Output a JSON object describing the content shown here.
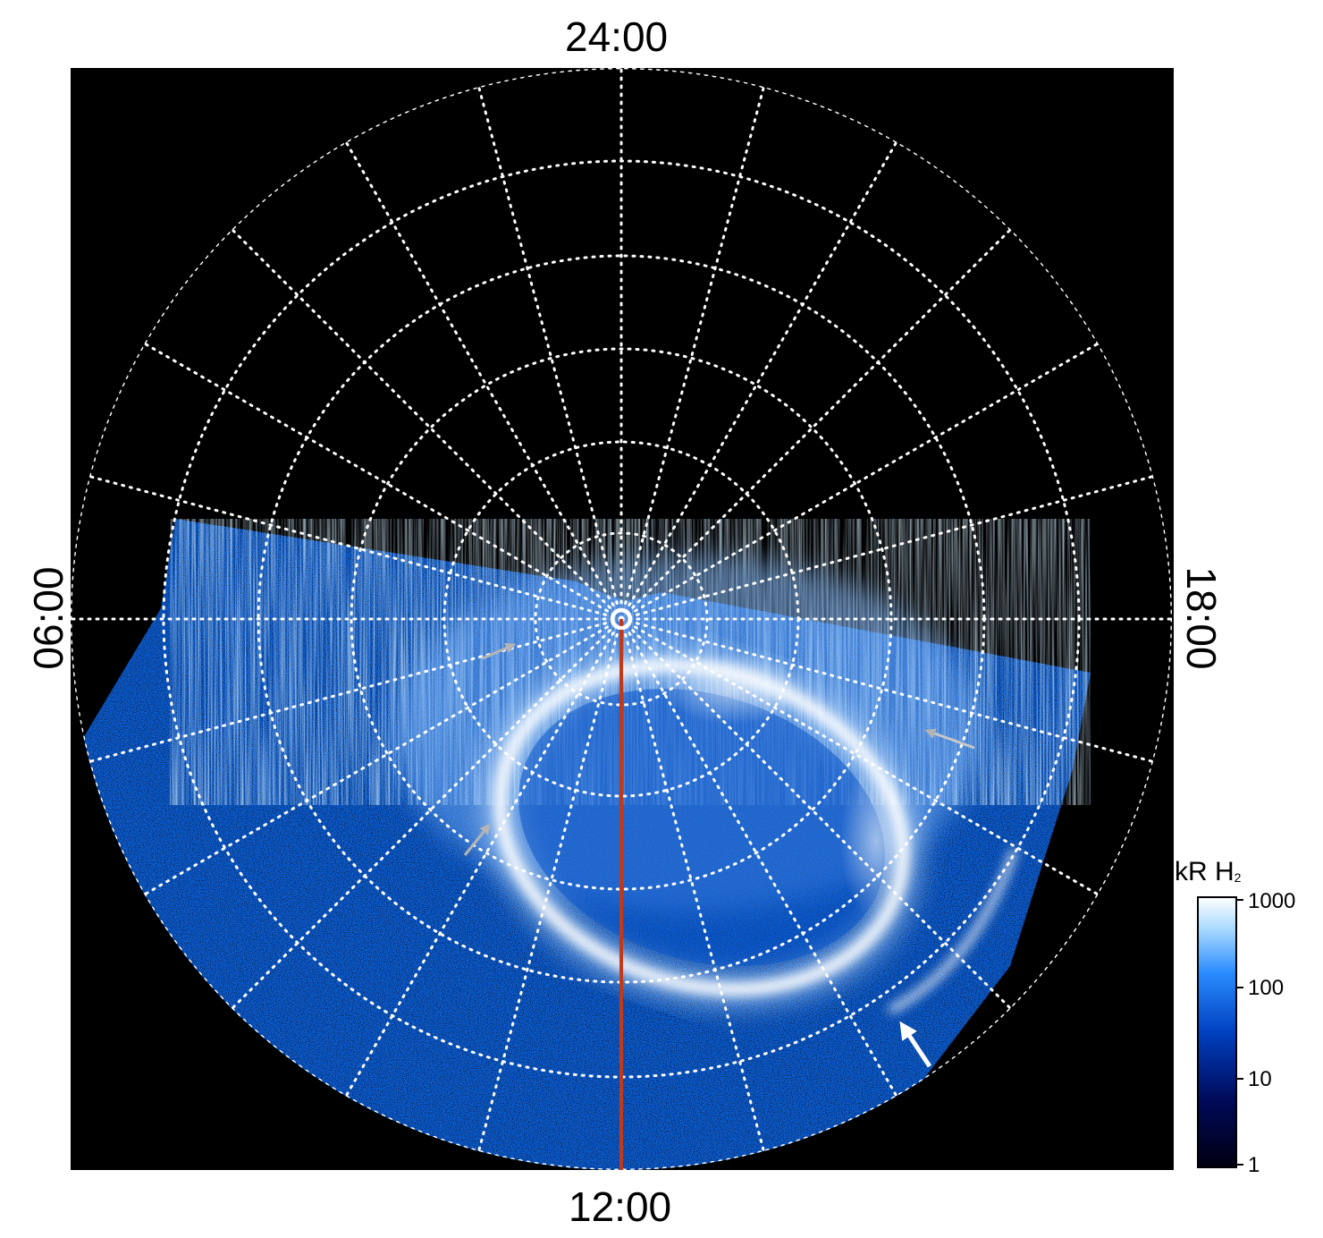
{
  "time_labels": {
    "top": "24:00",
    "bottom": "12:00",
    "left": "06:00",
    "right": "18:00"
  },
  "colorbar": {
    "title_main": "kR H",
    "title_sub": "2",
    "ticks": [
      "1000",
      "100",
      "10",
      "1"
    ],
    "scale": "log",
    "range": [
      1,
      1000
    ],
    "colors": [
      "#000010",
      "#000a5a",
      "#0040c0",
      "#2a8cff",
      "#a8d8ff",
      "#ffffff"
    ]
  },
  "annotations": {
    "meridian_line_color": "#c0391b",
    "pole_marker_color": "#ffffff",
    "grid_color": "#ffffff",
    "grid_style": "dotted",
    "arrow_colors": [
      "#b4b4b4",
      "#b4b4b4",
      "#c8c8c8",
      "#ffffff"
    ]
  }
}
